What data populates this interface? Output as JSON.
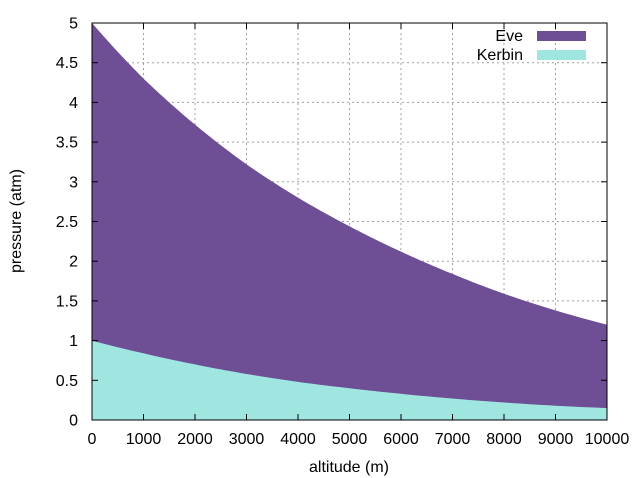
{
  "chart_data": {
    "type": "area",
    "title": "",
    "xlabel": "altitude (m)",
    "ylabel": "pressure (atm)",
    "xlim": [
      0,
      10000
    ],
    "ylim": [
      0,
      5
    ],
    "x_ticks": [
      0,
      1000,
      2000,
      3000,
      4000,
      5000,
      6000,
      7000,
      8000,
      9000,
      10000
    ],
    "y_ticks": [
      0,
      0.5,
      1,
      1.5,
      2,
      2.5,
      3,
      3.5,
      4,
      4.5,
      5
    ],
    "x_tick_labels": [
      "0",
      "1000",
      "2000",
      "3000",
      "4000",
      "5000",
      "6000",
      "7000",
      "8000",
      "9000",
      "10000"
    ],
    "y_tick_labels": [
      "0",
      "0.5",
      "1",
      "1.5",
      "2",
      "2.5",
      "3",
      "3.5",
      "4",
      "4.5",
      "5"
    ],
    "grid": true,
    "legend_position": "top-right",
    "x": [
      0,
      1000,
      2000,
      3000,
      4000,
      5000,
      6000,
      7000,
      8000,
      9000,
      10000
    ],
    "series": [
      {
        "name": "Eve",
        "color": "#6e4e94",
        "values": [
          5.0,
          4.3,
          3.72,
          3.22,
          2.8,
          2.44,
          2.12,
          1.84,
          1.59,
          1.38,
          1.2
        ]
      },
      {
        "name": "Kerbin",
        "color": "#a0e6e0",
        "values": [
          1.0,
          0.84,
          0.7,
          0.58,
          0.48,
          0.4,
          0.33,
          0.27,
          0.22,
          0.18,
          0.15
        ]
      }
    ]
  }
}
